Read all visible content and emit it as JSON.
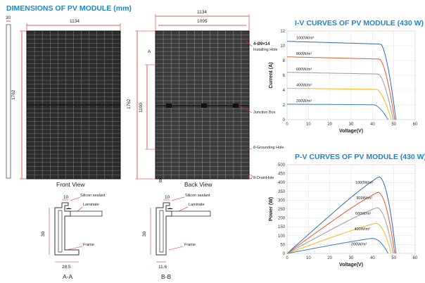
{
  "dimensions": {
    "title": "DIMENSIONS OF PV MODULE (mm)",
    "front": {
      "width": "1134",
      "height": "1762",
      "thickness": "30",
      "caption": "Front View"
    },
    "back": {
      "width": "1134",
      "inner_width": "1095",
      "height": "1762",
      "inner_height": "1100",
      "caption": "Back View",
      "labels": {
        "holes_spec": "4-Ø9×14",
        "installing": "Installing Hole",
        "junction": "Junction Box",
        "grounding": "8-Grounding Hole",
        "drain": "8-DrainHole",
        "section_a": "A",
        "section_b": "B"
      }
    },
    "section_aa": {
      "caption": "A-A",
      "top": "10",
      "side": "30",
      "bottom": "28.5",
      "labels": {
        "sealant": "Silicon sealant",
        "laminate": "Laminate",
        "frame": "Frame"
      }
    },
    "section_bb": {
      "caption": "B-B",
      "top": "10",
      "side": "30",
      "bottom": "11.6",
      "labels": {
        "sealant": "Silicon sealant",
        "laminate": "Laminate",
        "frame": "Frame"
      }
    }
  },
  "chart_data": [
    {
      "type": "line",
      "title": "I-V CURVES OF PV MODULE (430 W)",
      "xlabel": "Voltage(V)",
      "ylabel": "Current (A)",
      "xlim": [
        0,
        60
      ],
      "ylim": [
        0,
        12
      ],
      "xticks": [
        0,
        10,
        20,
        30,
        40,
        50,
        60
      ],
      "yticks": [
        0,
        2,
        4,
        6,
        8,
        10,
        12
      ],
      "series": [
        {
          "name": "1000W/m²",
          "color": "#2e69b3",
          "isc": 10.6,
          "voc": 51
        },
        {
          "name": "800W/m²",
          "color": "#e6572b",
          "isc": 8.5,
          "voc": 50.4
        },
        {
          "name": "600W/m²",
          "color": "#9a9a9a",
          "isc": 6.4,
          "voc": 49.7
        },
        {
          "name": "400W/m²",
          "color": "#f3b71b",
          "isc": 4.25,
          "voc": 48.8
        },
        {
          "name": "200W/m²",
          "color": "#3a7cc6",
          "isc": 2.1,
          "voc": 47.3
        }
      ]
    },
    {
      "type": "line",
      "title": "P-V CURVES OF PV MODULE (430 W)",
      "xlabel": "Voltage(V)",
      "ylabel": "Power (W)",
      "xlim": [
        0,
        60
      ],
      "ylim": [
        0,
        500
      ],
      "xticks": [
        0,
        10,
        20,
        30,
        40,
        50,
        60
      ],
      "yticks": [
        0,
        50,
        100,
        150,
        200,
        250,
        300,
        350,
        400,
        450,
        500
      ],
      "series": [
        {
          "name": "1000W/m²",
          "color": "#2e69b3",
          "pmax": 432,
          "vmp": 43,
          "voc": 51
        },
        {
          "name": "800W/m²",
          "color": "#e6572b",
          "pmax": 345,
          "vmp": 42.5,
          "voc": 50.4
        },
        {
          "name": "600W/m²",
          "color": "#9a9a9a",
          "pmax": 258,
          "vmp": 42,
          "voc": 49.7
        },
        {
          "name": "400W/m²",
          "color": "#f3b71b",
          "pmax": 170,
          "vmp": 41.5,
          "voc": 48.8
        },
        {
          "name": "200W/m²",
          "color": "#3a7cc6",
          "pmax": 85,
          "vmp": 40,
          "voc": 47.3
        }
      ]
    }
  ]
}
